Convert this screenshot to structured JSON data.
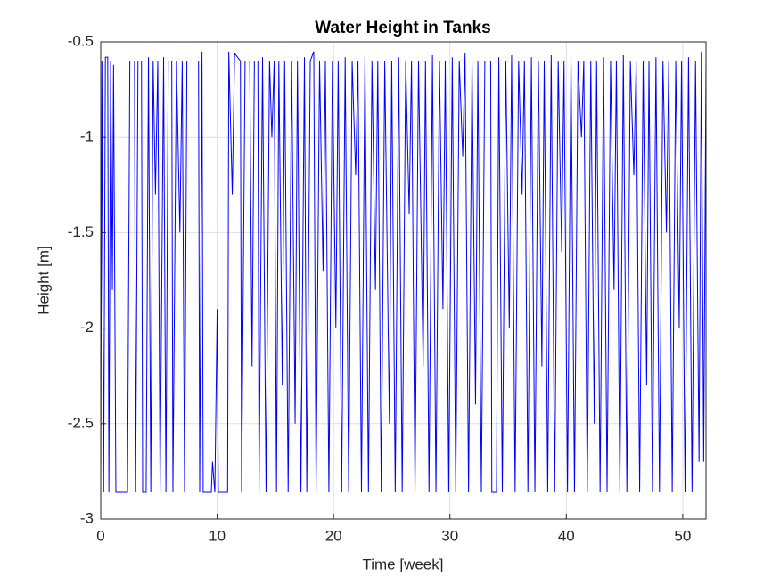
{
  "chart_data": {
    "type": "line",
    "title": "Water Height in Tanks",
    "x_label": "Time [week]",
    "y_label": "Height [m]",
    "color": "#0000ff",
    "grid": true,
    "xlim": [
      0,
      52
    ],
    "xticks": [
      0,
      10,
      20,
      30,
      40,
      50
    ],
    "ylim": [
      -3,
      -0.5
    ],
    "yticks": [
      -3,
      -2.5,
      -2,
      -1.5,
      -1,
      -0.5
    ],
    "x": [
      0,
      0.1,
      0.25,
      0.4,
      0.6,
      0.7,
      0.85,
      1.0,
      1.1,
      1.3,
      2.3,
      2.5,
      2.9,
      3.0,
      3.2,
      3.5,
      3.6,
      3.9,
      4.1,
      4.3,
      4.5,
      4.7,
      4.9,
      5.1,
      5.4,
      5.6,
      5.8,
      6.1,
      6.2,
      6.5,
      6.8,
      7.0,
      7.2,
      7.4,
      8.4,
      8.5,
      8.7,
      8.8,
      9.5,
      9.6,
      9.8,
      10.0,
      10.1,
      10.9,
      11.0,
      11.3,
      11.5,
      12.0,
      12.1,
      12.4,
      12.8,
      13.0,
      13.2,
      13.5,
      13.6,
      13.9,
      14.2,
      14.5,
      14.7,
      14.9,
      15.1,
      15.3,
      15.6,
      15.8,
      16.1,
      16.4,
      16.7,
      16.9,
      17.2,
      17.5,
      17.7,
      18.0,
      18.3,
      18.5,
      18.8,
      19.1,
      19.3,
      19.6,
      19.9,
      20.2,
      20.4,
      20.7,
      21.0,
      21.3,
      21.6,
      21.9,
      22.1,
      22.4,
      22.7,
      23.0,
      23.3,
      23.6,
      23.8,
      24.1,
      24.4,
      24.8,
      25.0,
      25.3,
      25.6,
      25.9,
      26.2,
      26.5,
      26.7,
      27.0,
      27.3,
      27.7,
      27.9,
      28.2,
      28.5,
      28.8,
      29.1,
      29.4,
      29.6,
      29.9,
      30.2,
      30.5,
      30.8,
      31.1,
      31.3,
      31.6,
      31.9,
      32.2,
      32.4,
      32.7,
      33.0,
      33.5,
      33.6,
      34.0,
      34.2,
      34.5,
      34.8,
      35.1,
      35.3,
      35.6,
      35.9,
      36.2,
      36.4,
      36.7,
      37.0,
      37.3,
      37.6,
      37.9,
      38.1,
      38.4,
      38.7,
      39.0,
      39.3,
      39.6,
      39.8,
      40.1,
      40.4,
      40.7,
      41.0,
      41.3,
      41.5,
      41.8,
      42.1,
      42.4,
      42.6,
      42.9,
      43.2,
      43.5,
      43.8,
      44.1,
      44.3,
      44.6,
      44.9,
      45.2,
      45.5,
      45.8,
      46.0,
      46.3,
      46.6,
      46.9,
      47.1,
      47.4,
      47.7,
      48.0,
      48.3,
      48.6,
      48.8,
      49.1,
      49.4,
      49.7,
      49.9,
      50.2,
      50.5,
      50.8,
      51.1,
      51.4,
      51.6,
      51.8,
      52.0
    ],
    "values": [
      -2.86,
      -0.6,
      -2.86,
      -0.58,
      -0.58,
      -2.86,
      -0.6,
      -1.8,
      -0.62,
      -2.86,
      -2.86,
      -0.6,
      -0.6,
      -2.86,
      -0.6,
      -0.6,
      -2.86,
      -2.86,
      -0.58,
      -2.86,
      -0.6,
      -1.3,
      -0.6,
      -2.86,
      -0.58,
      -2.86,
      -0.6,
      -0.6,
      -2.86,
      -0.6,
      -1.5,
      -0.6,
      -2.86,
      -0.6,
      -0.6,
      -2.86,
      -0.55,
      -2.86,
      -2.86,
      -2.7,
      -2.86,
      -1.9,
      -2.86,
      -2.86,
      -0.55,
      -1.3,
      -0.56,
      -0.6,
      -2.86,
      -0.6,
      -0.6,
      -2.2,
      -0.6,
      -0.6,
      -2.86,
      -0.58,
      -2.86,
      -0.6,
      -1.0,
      -0.6,
      -2.86,
      -0.6,
      -2.3,
      -0.6,
      -2.86,
      -0.6,
      -2.5,
      -0.6,
      -2.86,
      -0.58,
      -2.86,
      -0.6,
      -0.55,
      -2.86,
      -0.6,
      -1.7,
      -0.6,
      -2.86,
      -0.6,
      -2.0,
      -0.6,
      -2.86,
      -0.58,
      -2.86,
      -0.6,
      -1.2,
      -0.6,
      -2.86,
      -0.57,
      -2.86,
      -0.6,
      -1.8,
      -0.6,
      -2.86,
      -0.6,
      -2.5,
      -0.6,
      -2.86,
      -0.58,
      -2.86,
      -0.6,
      -1.4,
      -0.6,
      -2.86,
      -0.6,
      -2.2,
      -0.6,
      -2.86,
      -0.57,
      -2.86,
      -0.6,
      -1.9,
      -0.6,
      -2.86,
      -0.58,
      -2.86,
      -0.6,
      -1.1,
      -0.56,
      -2.86,
      -0.6,
      -2.4,
      -0.6,
      -2.86,
      -0.6,
      -0.6,
      -2.86,
      -2.86,
      -0.58,
      -2.86,
      -0.6,
      -2.0,
      -0.57,
      -2.86,
      -0.6,
      -1.3,
      -0.6,
      -2.86,
      -0.58,
      -2.86,
      -0.6,
      -2.2,
      -0.6,
      -2.86,
      -0.57,
      -2.86,
      -0.6,
      -1.6,
      -0.6,
      -2.86,
      -0.58,
      -2.86,
      -0.6,
      -1.0,
      -0.6,
      -2.86,
      -0.6,
      -2.5,
      -0.6,
      -2.86,
      -0.58,
      -2.86,
      -0.6,
      -1.8,
      -0.6,
      -2.86,
      -0.57,
      -2.86,
      -0.6,
      -1.2,
      -0.6,
      -2.86,
      -0.6,
      -2.3,
      -0.6,
      -2.86,
      -0.58,
      -2.86,
      -0.6,
      -1.5,
      -0.6,
      -2.86,
      -0.6,
      -2.0,
      -0.6,
      -2.86,
      -0.58,
      -2.86,
      -0.6,
      -2.7,
      -0.55,
      -2.7,
      -0.6
    ]
  }
}
